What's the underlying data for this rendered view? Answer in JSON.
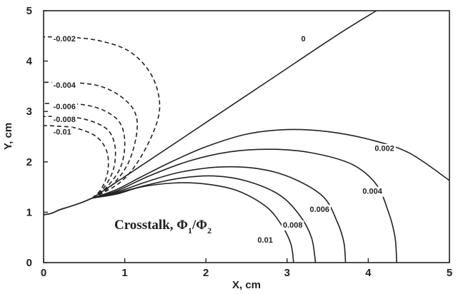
{
  "chart_data": {
    "type": "line",
    "title": "",
    "xlabel": "X, cm",
    "ylabel": "Y, cm",
    "xlim": [
      0,
      5
    ],
    "ylim": [
      0,
      5
    ],
    "xticks": [
      "0",
      "1",
      "2",
      "3",
      "4",
      "5"
    ],
    "yticks": [
      "0",
      "1",
      "2",
      "3",
      "4",
      "5"
    ],
    "grid": false,
    "legend": "none",
    "annotation": {
      "main": "Crosstalk, Φ",
      "sub1": "1",
      "slash": "/Φ",
      "sub2": "2"
    },
    "shared_curve": {
      "points": [
        [
          0.0,
          0.95
        ],
        [
          0.1,
          0.98
        ],
        [
          0.2,
          1.05
        ],
        [
          0.3,
          1.1
        ],
        [
          0.45,
          1.18
        ],
        [
          0.6,
          1.28
        ]
      ]
    },
    "series": [
      {
        "label": "0",
        "style": "solid",
        "label_at": [
          3.2,
          4.45
        ],
        "points": [
          [
            0.6,
            1.28
          ],
          [
            1.2,
            1.92
          ],
          [
            2.0,
            2.78
          ],
          [
            2.8,
            3.64
          ],
          [
            3.6,
            4.5
          ],
          [
            4.1,
            5.0
          ]
        ]
      },
      {
        "label": "0.002",
        "style": "solid",
        "label_at": [
          4.2,
          2.27
        ],
        "points": [
          [
            0.6,
            1.28
          ],
          [
            0.9,
            1.45
          ],
          [
            1.2,
            1.7
          ],
          [
            1.6,
            2.02
          ],
          [
            2.0,
            2.3
          ],
          [
            2.5,
            2.55
          ],
          [
            3.0,
            2.64
          ],
          [
            3.5,
            2.6
          ],
          [
            4.0,
            2.45
          ],
          [
            4.5,
            2.18
          ],
          [
            5.0,
            1.63
          ]
        ]
      },
      {
        "label": "0.004",
        "style": "solid",
        "label_at": [
          4.05,
          1.42
        ],
        "points": [
          [
            0.6,
            1.28
          ],
          [
            0.9,
            1.42
          ],
          [
            1.3,
            1.72
          ],
          [
            1.8,
            2.02
          ],
          [
            2.3,
            2.2
          ],
          [
            2.8,
            2.25
          ],
          [
            3.3,
            2.18
          ],
          [
            3.8,
            1.95
          ],
          [
            4.1,
            1.55
          ],
          [
            4.25,
            1.0
          ],
          [
            4.33,
            0.5
          ],
          [
            4.35,
            0.0
          ]
        ]
      },
      {
        "label": "0.006",
        "style": "solid",
        "label_at": [
          3.4,
          1.06
        ],
        "points": [
          [
            0.6,
            1.28
          ],
          [
            0.9,
            1.4
          ],
          [
            1.3,
            1.62
          ],
          [
            1.7,
            1.8
          ],
          [
            2.2,
            1.9
          ],
          [
            2.7,
            1.85
          ],
          [
            3.1,
            1.65
          ],
          [
            3.45,
            1.3
          ],
          [
            3.62,
            0.8
          ],
          [
            3.7,
            0.4
          ],
          [
            3.72,
            0.0
          ]
        ]
      },
      {
        "label": "0.008",
        "style": "solid",
        "label_at": [
          3.07,
          0.75
        ],
        "points": [
          [
            0.6,
            1.28
          ],
          [
            0.9,
            1.38
          ],
          [
            1.3,
            1.55
          ],
          [
            1.7,
            1.68
          ],
          [
            2.1,
            1.72
          ],
          [
            2.5,
            1.62
          ],
          [
            2.9,
            1.35
          ],
          [
            3.15,
            0.95
          ],
          [
            3.3,
            0.5
          ],
          [
            3.35,
            0.0
          ]
        ]
      },
      {
        "label": "0.01",
        "style": "solid",
        "label_at": [
          2.73,
          0.45
        ],
        "points": [
          [
            0.6,
            1.28
          ],
          [
            0.9,
            1.36
          ],
          [
            1.2,
            1.5
          ],
          [
            1.6,
            1.58
          ],
          [
            2.0,
            1.56
          ],
          [
            2.4,
            1.42
          ],
          [
            2.75,
            1.1
          ],
          [
            2.95,
            0.7
          ],
          [
            3.05,
            0.35
          ],
          [
            3.08,
            0.0
          ]
        ]
      },
      {
        "label": "-0.002",
        "style": "dashed",
        "label_at": [
          0.12,
          4.45
        ],
        "points": [
          [
            0.6,
            1.28
          ],
          [
            0.95,
            1.6
          ],
          [
            1.2,
            2.1
          ],
          [
            1.4,
            2.8
          ],
          [
            1.42,
            3.3
          ],
          [
            1.3,
            3.8
          ],
          [
            1.05,
            4.2
          ],
          [
            0.7,
            4.4
          ],
          [
            0.35,
            4.47
          ],
          [
            0.0,
            4.48
          ]
        ]
      },
      {
        "label": "-0.004",
        "style": "dashed",
        "label_at": [
          0.12,
          3.53
        ],
        "points": [
          [
            0.6,
            1.28
          ],
          [
            0.85,
            1.55
          ],
          [
            1.05,
            2.0
          ],
          [
            1.15,
            2.6
          ],
          [
            1.12,
            3.0
          ],
          [
            0.95,
            3.3
          ],
          [
            0.7,
            3.5
          ],
          [
            0.4,
            3.57
          ],
          [
            0.0,
            3.58
          ]
        ]
      },
      {
        "label": "-0.006",
        "style": "dashed",
        "label_at": [
          0.12,
          3.1
        ],
        "points": [
          [
            0.6,
            1.28
          ],
          [
            0.78,
            1.5
          ],
          [
            0.95,
            1.9
          ],
          [
            1.0,
            2.4
          ],
          [
            0.93,
            2.8
          ],
          [
            0.7,
            3.05
          ],
          [
            0.4,
            3.15
          ],
          [
            0.0,
            3.16
          ]
        ]
      },
      {
        "label": "-0.008",
        "style": "dashed",
        "label_at": [
          0.12,
          2.85
        ],
        "points": [
          [
            0.6,
            1.28
          ],
          [
            0.74,
            1.48
          ],
          [
            0.86,
            1.85
          ],
          [
            0.88,
            2.3
          ],
          [
            0.78,
            2.65
          ],
          [
            0.5,
            2.85
          ],
          [
            0.2,
            2.9
          ],
          [
            0.0,
            2.9
          ]
        ]
      },
      {
        "label": "-0.01",
        "style": "dashed",
        "label_at": [
          0.12,
          2.6
        ],
        "points": [
          [
            0.6,
            1.28
          ],
          [
            0.71,
            1.46
          ],
          [
            0.79,
            1.8
          ],
          [
            0.78,
            2.2
          ],
          [
            0.65,
            2.5
          ],
          [
            0.4,
            2.67
          ],
          [
            0.15,
            2.71
          ],
          [
            0.0,
            2.72
          ]
        ]
      }
    ]
  }
}
